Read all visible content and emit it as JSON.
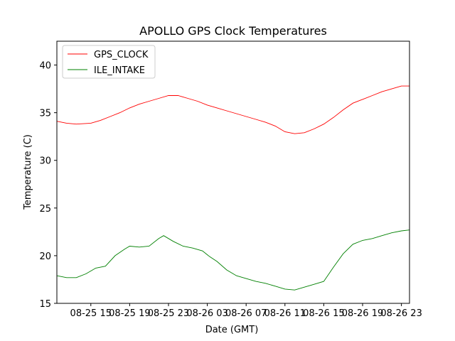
{
  "chart_data": {
    "type": "line",
    "title": "APOLLO GPS Clock Temperatures",
    "xlabel": "Date (GMT)",
    "ylabel": "Temperature (C)",
    "x_domain": [
      "2025-08-25T11:30",
      "2025-08-26T23:50"
    ],
    "ylim": [
      15,
      42.5
    ],
    "x_tick_values": [
      "2025-08-25T15:00",
      "2025-08-25T19:00",
      "2025-08-25T23:00",
      "2025-08-26T03:00",
      "2025-08-26T07:00",
      "2025-08-26T11:00",
      "2025-08-26T15:00",
      "2025-08-26T19:00",
      "2025-08-26T23:00"
    ],
    "x_tick_labels": [
      "08-25 15",
      "08-25 19",
      "08-25 23",
      "08-26 03",
      "08-26 07",
      "08-26 11",
      "08-26 15",
      "08-26 19",
      "08-26 23"
    ],
    "y_ticks": [
      15,
      20,
      25,
      30,
      35,
      40
    ],
    "y_tick_labels": [
      "15",
      "20",
      "25",
      "30",
      "35",
      "40"
    ],
    "grid": false,
    "legend": "top-left",
    "series": [
      {
        "name": "GPS_CLOCK",
        "color": "#ff0000",
        "x": [
          "2025-08-25T11:30",
          "2025-08-25T12:30",
          "2025-08-25T13:30",
          "2025-08-25T15:00",
          "2025-08-25T16:00",
          "2025-08-25T17:00",
          "2025-08-25T18:00",
          "2025-08-25T19:00",
          "2025-08-25T20:00",
          "2025-08-25T21:00",
          "2025-08-25T22:00",
          "2025-08-25T23:00",
          "2025-08-26T00:00",
          "2025-08-26T01:00",
          "2025-08-26T02:00",
          "2025-08-26T03:00",
          "2025-08-26T04:00",
          "2025-08-26T05:00",
          "2025-08-26T06:00",
          "2025-08-26T07:00",
          "2025-08-26T08:00",
          "2025-08-26T09:00",
          "2025-08-26T10:00",
          "2025-08-26T11:00",
          "2025-08-26T12:00",
          "2025-08-26T13:00",
          "2025-08-26T14:00",
          "2025-08-26T15:00",
          "2025-08-26T16:00",
          "2025-08-26T17:00",
          "2025-08-26T18:00",
          "2025-08-26T19:00",
          "2025-08-26T20:00",
          "2025-08-26T21:00",
          "2025-08-26T22:00",
          "2025-08-26T23:00",
          "2025-08-26T23:50"
        ],
        "values": [
          34.1,
          33.9,
          33.8,
          33.9,
          34.2,
          34.6,
          35.0,
          35.5,
          35.9,
          36.2,
          36.5,
          36.8,
          36.8,
          36.5,
          36.2,
          35.8,
          35.5,
          35.2,
          34.9,
          34.6,
          34.3,
          34.0,
          33.6,
          33.0,
          32.8,
          32.9,
          33.3,
          33.8,
          34.5,
          35.3,
          36.0,
          36.4,
          36.8,
          37.2,
          37.5,
          37.8,
          37.8
        ]
      },
      {
        "name": "ILE_INTAKE",
        "color": "#008000",
        "x": [
          "2025-08-25T11:30",
          "2025-08-25T12:30",
          "2025-08-25T13:30",
          "2025-08-25T14:30",
          "2025-08-25T15:30",
          "2025-08-25T16:30",
          "2025-08-25T17:30",
          "2025-08-25T18:30",
          "2025-08-25T19:00",
          "2025-08-25T20:00",
          "2025-08-25T21:00",
          "2025-08-25T22:00",
          "2025-08-25T22:30",
          "2025-08-25T23:30",
          "2025-08-26T00:30",
          "2025-08-26T01:30",
          "2025-08-26T02:30",
          "2025-08-26T03:00",
          "2025-08-26T03:15",
          "2025-08-26T04:00",
          "2025-08-26T05:00",
          "2025-08-26T06:00",
          "2025-08-26T07:00",
          "2025-08-26T08:00",
          "2025-08-26T09:00",
          "2025-08-26T10:00",
          "2025-08-26T11:00",
          "2025-08-26T12:00",
          "2025-08-26T13:00",
          "2025-08-26T14:00",
          "2025-08-26T15:00",
          "2025-08-26T16:00",
          "2025-08-26T17:00",
          "2025-08-26T18:00",
          "2025-08-26T19:00",
          "2025-08-26T20:00",
          "2025-08-26T21:00",
          "2025-08-26T22:00",
          "2025-08-26T23:00",
          "2025-08-26T23:50"
        ],
        "values": [
          17.9,
          17.7,
          17.7,
          18.1,
          18.7,
          18.9,
          20.0,
          20.7,
          21.0,
          20.9,
          21.0,
          21.8,
          22.1,
          21.5,
          21.0,
          20.8,
          20.5,
          20.1,
          19.9,
          19.4,
          18.5,
          17.9,
          17.6,
          17.3,
          17.1,
          16.8,
          16.5,
          16.4,
          16.7,
          17.0,
          17.3,
          18.8,
          20.2,
          21.2,
          21.6,
          21.8,
          22.1,
          22.4,
          22.6,
          22.7
        ]
      }
    ]
  }
}
